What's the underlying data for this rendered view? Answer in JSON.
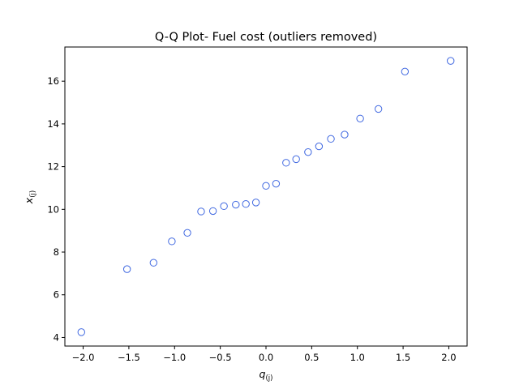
{
  "chart_data": {
    "type": "scatter",
    "title": "Q-Q Plot- Fuel cost (outliers removed)",
    "xlabel": {
      "base": "q",
      "sub": "(j)"
    },
    "ylabel": {
      "base": "x",
      "sub": "(j)"
    },
    "xlim": [
      -2.2,
      2.2
    ],
    "ylim": [
      3.6,
      17.6
    ],
    "xticks": [
      -2.0,
      -1.5,
      -1.0,
      -0.5,
      0.0,
      0.5,
      1.0,
      1.5,
      2.0
    ],
    "xtick_labels": [
      "−2.0",
      "−1.5",
      "−1.0",
      "−0.5",
      "0.0",
      "0.5",
      "1.0",
      "1.5",
      "2.0"
    ],
    "yticks": [
      4,
      6,
      8,
      10,
      12,
      14,
      16
    ],
    "ytick_labels": [
      "4",
      "6",
      "8",
      "10",
      "12",
      "14",
      "16"
    ],
    "grid": false,
    "marker": "open-circle",
    "marker_color": "#4169e1",
    "points": [
      {
        "x": -2.02,
        "y": 4.25
      },
      {
        "x": -1.52,
        "y": 7.2
      },
      {
        "x": -1.23,
        "y": 7.5
      },
      {
        "x": -1.03,
        "y": 8.5
      },
      {
        "x": -0.86,
        "y": 8.9
      },
      {
        "x": -0.71,
        "y": 9.9
      },
      {
        "x": -0.58,
        "y": 9.92
      },
      {
        "x": -0.46,
        "y": 10.15
      },
      {
        "x": -0.33,
        "y": 10.22
      },
      {
        "x": -0.22,
        "y": 10.25
      },
      {
        "x": -0.11,
        "y": 10.32
      },
      {
        "x": 0.0,
        "y": 11.1
      },
      {
        "x": 0.11,
        "y": 11.2
      },
      {
        "x": 0.22,
        "y": 12.18
      },
      {
        "x": 0.33,
        "y": 12.35
      },
      {
        "x": 0.46,
        "y": 12.68
      },
      {
        "x": 0.58,
        "y": 12.95
      },
      {
        "x": 0.71,
        "y": 13.3
      },
      {
        "x": 0.86,
        "y": 13.5
      },
      {
        "x": 1.03,
        "y": 14.25
      },
      {
        "x": 1.23,
        "y": 14.7
      },
      {
        "x": 1.52,
        "y": 16.45
      },
      {
        "x": 2.02,
        "y": 16.95
      }
    ]
  }
}
